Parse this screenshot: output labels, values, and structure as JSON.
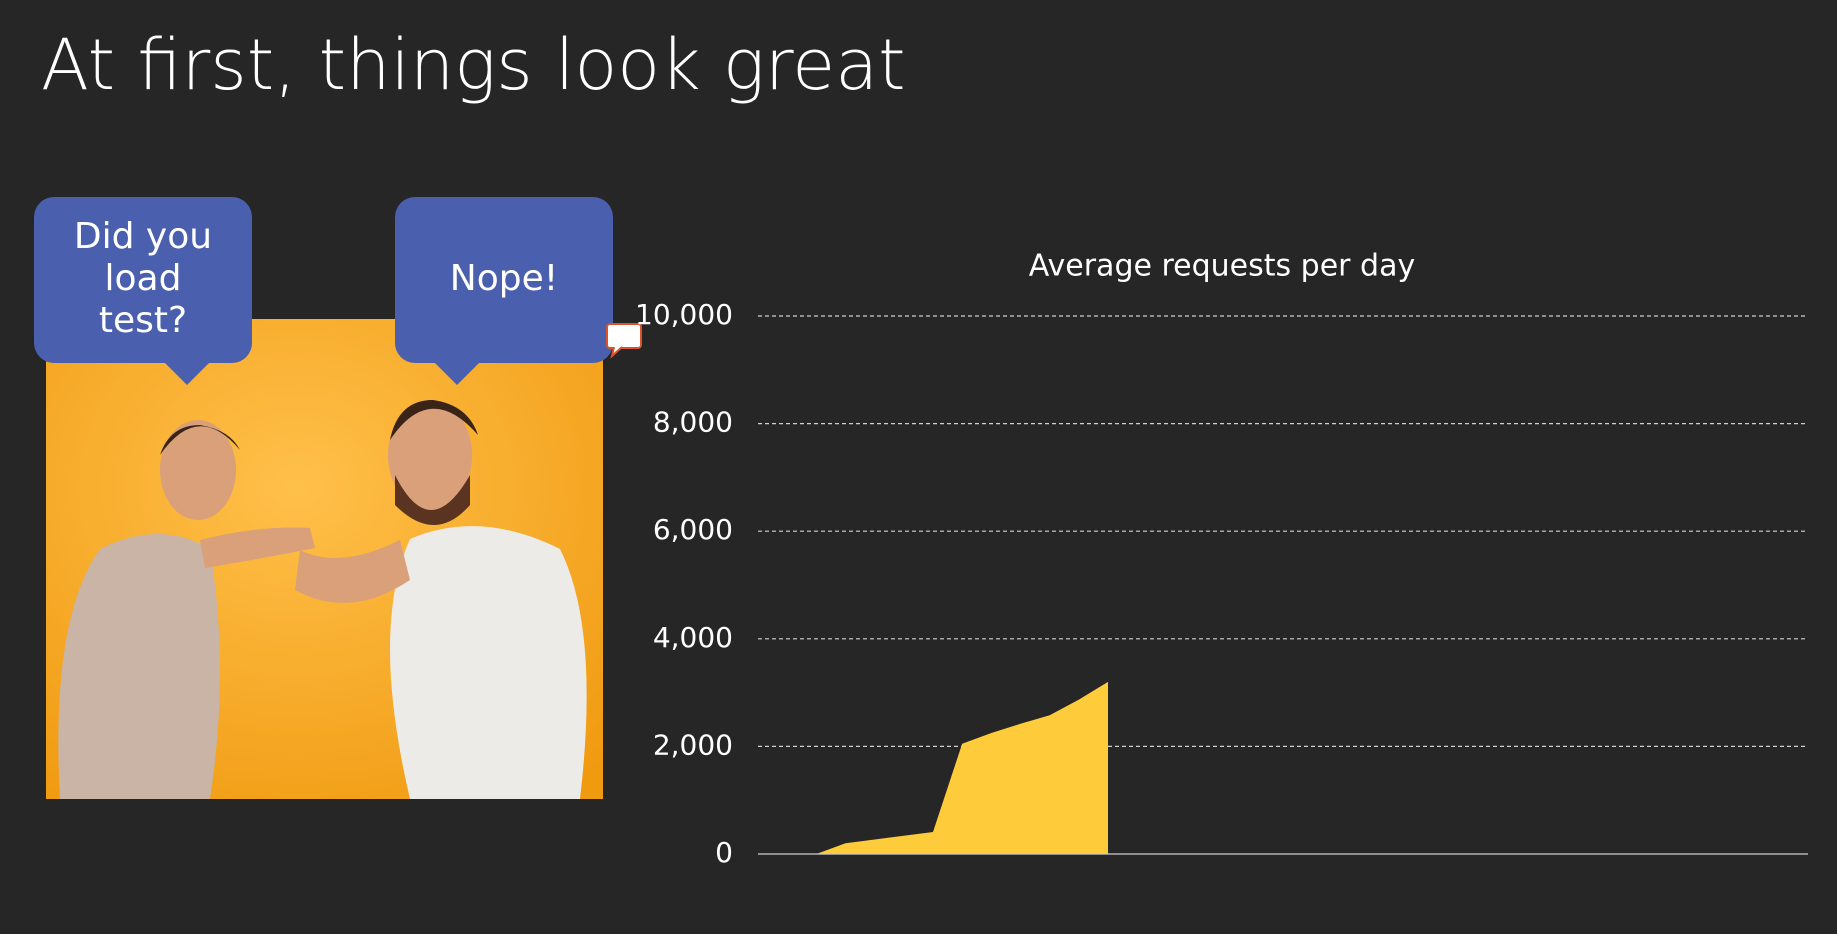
{
  "slide": {
    "title": "At first, things look great",
    "bubbles": [
      {
        "lines": [
          "Did you",
          "load",
          "test?"
        ]
      },
      {
        "lines": [
          "Nope!"
        ]
      }
    ]
  },
  "chart_data": {
    "type": "area",
    "title": "Average requests per day",
    "color": "#fecb3a",
    "grid": true,
    "categories": [
      null,
      null,
      null,
      null,
      null,
      null,
      null,
      null,
      null,
      null,
      null,
      null,
      null,
      null,
      null,
      null,
      null,
      null,
      null,
      null,
      null,
      null,
      null,
      null,
      null,
      null,
      null,
      null,
      null,
      null,
      null,
      null,
      null,
      null,
      null,
      null,
      null
    ],
    "values": [
      0,
      0,
      0,
      200,
      270,
      340,
      410,
      2050,
      2250,
      2420,
      2580,
      2870,
      3200,
      null,
      null,
      null,
      null,
      null,
      null,
      null,
      null,
      null,
      null,
      null,
      null,
      null,
      null,
      null,
      null,
      null,
      null,
      null,
      null,
      null,
      null,
      null,
      null
    ],
    "ylim": [
      0,
      10000
    ],
    "yticks": [
      0,
      {
        "value": 2000,
        "label": "2,000"
      },
      {
        "value": 4000,
        "label": "4,000"
      },
      {
        "value": 6000,
        "label": "6,000"
      },
      {
        "value": 8000,
        "label": "8,000"
      },
      {
        "value": 10000,
        "label": "10,000"
      }
    ]
  }
}
